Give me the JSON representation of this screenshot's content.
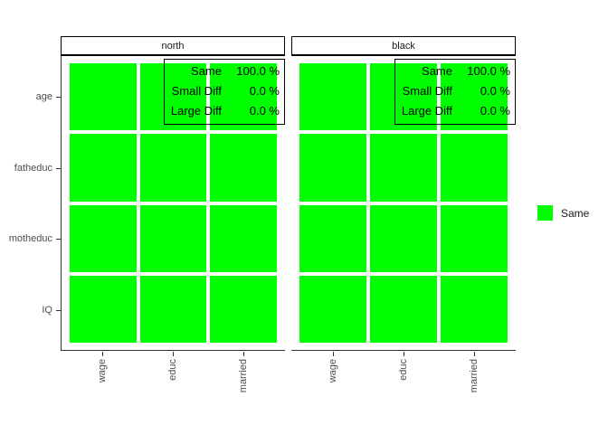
{
  "chart_data": {
    "type": "heatmap",
    "title": "",
    "facets": [
      {
        "title": "north",
        "stats": [
          {
            "label": "Same",
            "value": "100.0 %"
          },
          {
            "label": "Small Diff",
            "value": "0.0 %"
          },
          {
            "label": "Large Diff",
            "value": "0.0 %"
          }
        ],
        "cells": [
          [
            "Same",
            "Same",
            "Same"
          ],
          [
            "Same",
            "Same",
            "Same"
          ],
          [
            "Same",
            "Same",
            "Same"
          ],
          [
            "Same",
            "Same",
            "Same"
          ]
        ]
      },
      {
        "title": "black",
        "stats": [
          {
            "label": "Same",
            "value": "100.0 %"
          },
          {
            "label": "Small Diff",
            "value": "0.0 %"
          },
          {
            "label": "Large Diff",
            "value": "0.0 %"
          }
        ],
        "cells": [
          [
            "Same",
            "Same",
            "Same"
          ],
          [
            "Same",
            "Same",
            "Same"
          ],
          [
            "Same",
            "Same",
            "Same"
          ],
          [
            "Same",
            "Same",
            "Same"
          ]
        ]
      }
    ],
    "x_categories": [
      "wage",
      "educ",
      "married"
    ],
    "y_categories": [
      "age",
      "fatheduc",
      "motheduc",
      "IQ"
    ],
    "legend": {
      "position": "right",
      "items": [
        {
          "label": "Same",
          "color": "#00FF00"
        }
      ]
    },
    "grid": "off",
    "layout": "2 facet panels side by side, 3 columns x 4 rows of tiles each, all tiles colored Same-green"
  },
  "facets": [
    {
      "title": "north",
      "stats": [
        {
          "label": "Same",
          "value": "100.0 %"
        },
        {
          "label": "Small Diff",
          "value": "0.0 %"
        },
        {
          "label": "Large Diff",
          "value": "0.0 %"
        }
      ]
    },
    {
      "title": "black",
      "stats": [
        {
          "label": "Same",
          "value": "100.0 %"
        },
        {
          "label": "Small Diff",
          "value": "0.0 %"
        },
        {
          "label": "Large Diff",
          "value": "0.0 %"
        }
      ]
    }
  ],
  "axes": {
    "y": {
      "labels": [
        "age",
        "fatheduc",
        "motheduc",
        "IQ"
      ]
    },
    "x": {
      "labels": [
        "wage",
        "educ",
        "married"
      ]
    }
  },
  "legend": {
    "items": [
      {
        "label": "Same",
        "color": "#00FF00"
      }
    ]
  },
  "grid": {
    "rows": 4,
    "cols": 3
  },
  "colors": {
    "tile": "#00FF00",
    "axis_text": "#4d4d4d",
    "axis_line": "#333333",
    "border": "#000000",
    "background": "#ffffff"
  }
}
